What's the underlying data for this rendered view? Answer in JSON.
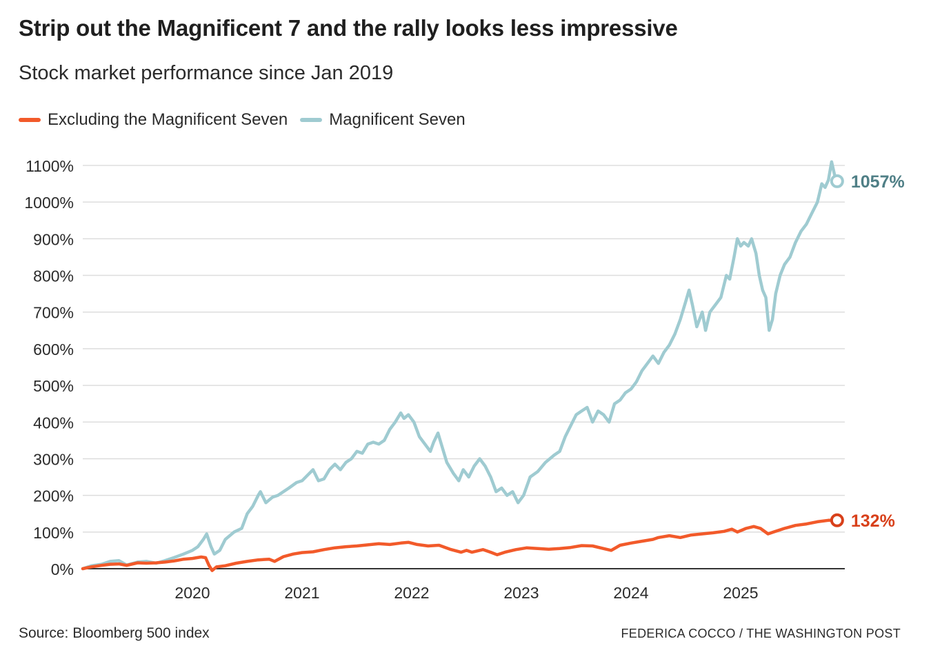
{
  "title": "Strip out the Magnificent 7 and the rally looks less impressive",
  "subtitle": "Stock market performance since Jan 2019",
  "source": "Source: Bloomberg 500 index",
  "credit": "FEDERICA COCCO / THE WASHINGTON POST",
  "colors": {
    "ex_mag7": "#f25a2a",
    "mag7": "#9fcbd1",
    "ex_mag7_label": "#d8401a",
    "mag7_label": "#4f7f86",
    "grid": "#dddddd",
    "axis": "#333333"
  },
  "chart_data": {
    "type": "line",
    "title": "Strip out the Magnificent 7 and the rally looks less impressive",
    "subtitle": "Stock market performance since Jan 2019",
    "xlabel": "",
    "ylabel": "",
    "xlim": [
      2019.0,
      2025.95
    ],
    "ylim": [
      0,
      1100
    ],
    "x_ticks": [
      2020,
      2021,
      2022,
      2023,
      2024,
      2025
    ],
    "x_tick_labels": [
      "2020",
      "2021",
      "2022",
      "2023",
      "2024",
      "2025"
    ],
    "y_ticks": [
      0,
      100,
      200,
      300,
      400,
      500,
      600,
      700,
      800,
      900,
      1000,
      1100
    ],
    "y_tick_labels": [
      "0%",
      "100%",
      "200%",
      "300%",
      "400%",
      "500%",
      "600%",
      "700%",
      "800%",
      "900%",
      "1000%",
      "1100%"
    ],
    "grid": true,
    "legend_position": "top-left",
    "series": [
      {
        "name": "Excluding the Magnificent Seven",
        "color": "#f25a2a",
        "end_label": "132%",
        "points": [
          [
            2019.0,
            0
          ],
          [
            2019.08,
            5
          ],
          [
            2019.17,
            9
          ],
          [
            2019.25,
            12
          ],
          [
            2019.33,
            13
          ],
          [
            2019.4,
            9
          ],
          [
            2019.5,
            16
          ],
          [
            2019.58,
            15
          ],
          [
            2019.67,
            16
          ],
          [
            2019.75,
            18
          ],
          [
            2019.83,
            21
          ],
          [
            2019.92,
            26
          ],
          [
            2020.0,
            28
          ],
          [
            2020.08,
            32
          ],
          [
            2020.12,
            30
          ],
          [
            2020.15,
            10
          ],
          [
            2020.18,
            -5
          ],
          [
            2020.22,
            5
          ],
          [
            2020.3,
            8
          ],
          [
            2020.4,
            15
          ],
          [
            2020.5,
            20
          ],
          [
            2020.6,
            24
          ],
          [
            2020.7,
            26
          ],
          [
            2020.75,
            20
          ],
          [
            2020.83,
            33
          ],
          [
            2020.92,
            40
          ],
          [
            2021.0,
            44
          ],
          [
            2021.1,
            46
          ],
          [
            2021.2,
            52
          ],
          [
            2021.3,
            57
          ],
          [
            2021.4,
            60
          ],
          [
            2021.5,
            62
          ],
          [
            2021.6,
            65
          ],
          [
            2021.7,
            68
          ],
          [
            2021.8,
            66
          ],
          [
            2021.9,
            70
          ],
          [
            2021.97,
            72
          ],
          [
            2022.05,
            66
          ],
          [
            2022.15,
            62
          ],
          [
            2022.25,
            64
          ],
          [
            2022.35,
            53
          ],
          [
            2022.45,
            45
          ],
          [
            2022.5,
            50
          ],
          [
            2022.55,
            45
          ],
          [
            2022.65,
            52
          ],
          [
            2022.72,
            45
          ],
          [
            2022.78,
            38
          ],
          [
            2022.85,
            45
          ],
          [
            2022.95,
            52
          ],
          [
            2023.05,
            57
          ],
          [
            2023.15,
            55
          ],
          [
            2023.25,
            53
          ],
          [
            2023.35,
            55
          ],
          [
            2023.45,
            58
          ],
          [
            2023.55,
            63
          ],
          [
            2023.65,
            62
          ],
          [
            2023.75,
            55
          ],
          [
            2023.82,
            50
          ],
          [
            2023.9,
            64
          ],
          [
            2024.0,
            70
          ],
          [
            2024.1,
            75
          ],
          [
            2024.2,
            80
          ],
          [
            2024.25,
            85
          ],
          [
            2024.35,
            90
          ],
          [
            2024.45,
            85
          ],
          [
            2024.55,
            92
          ],
          [
            2024.65,
            95
          ],
          [
            2024.75,
            98
          ],
          [
            2024.85,
            102
          ],
          [
            2024.92,
            108
          ],
          [
            2024.97,
            100
          ],
          [
            2025.05,
            110
          ],
          [
            2025.12,
            115
          ],
          [
            2025.18,
            110
          ],
          [
            2025.25,
            95
          ],
          [
            2025.3,
            100
          ],
          [
            2025.4,
            110
          ],
          [
            2025.5,
            118
          ],
          [
            2025.6,
            122
          ],
          [
            2025.7,
            128
          ],
          [
            2025.8,
            132
          ],
          [
            2025.88,
            132
          ]
        ]
      },
      {
        "name": "Magnificent Seven",
        "color": "#9fcbd1",
        "end_label": "1057%",
        "points": [
          [
            2019.0,
            0
          ],
          [
            2019.08,
            8
          ],
          [
            2019.17,
            12
          ],
          [
            2019.25,
            20
          ],
          [
            2019.33,
            22
          ],
          [
            2019.4,
            10
          ],
          [
            2019.5,
            18
          ],
          [
            2019.58,
            20
          ],
          [
            2019.67,
            15
          ],
          [
            2019.75,
            22
          ],
          [
            2019.83,
            30
          ],
          [
            2019.92,
            40
          ],
          [
            2020.0,
            50
          ],
          [
            2020.05,
            60
          ],
          [
            2020.1,
            80
          ],
          [
            2020.13,
            95
          ],
          [
            2020.17,
            60
          ],
          [
            2020.2,
            40
          ],
          [
            2020.25,
            50
          ],
          [
            2020.3,
            80
          ],
          [
            2020.38,
            100
          ],
          [
            2020.45,
            110
          ],
          [
            2020.5,
            150
          ],
          [
            2020.55,
            170
          ],
          [
            2020.6,
            200
          ],
          [
            2020.62,
            210
          ],
          [
            2020.67,
            180
          ],
          [
            2020.73,
            195
          ],
          [
            2020.78,
            200
          ],
          [
            2020.83,
            210
          ],
          [
            2020.88,
            220
          ],
          [
            2020.95,
            235
          ],
          [
            2021.0,
            240
          ],
          [
            2021.05,
            255
          ],
          [
            2021.1,
            270
          ],
          [
            2021.15,
            240
          ],
          [
            2021.2,
            245
          ],
          [
            2021.25,
            270
          ],
          [
            2021.3,
            285
          ],
          [
            2021.35,
            270
          ],
          [
            2021.4,
            290
          ],
          [
            2021.45,
            300
          ],
          [
            2021.5,
            320
          ],
          [
            2021.55,
            315
          ],
          [
            2021.6,
            340
          ],
          [
            2021.65,
            345
          ],
          [
            2021.7,
            340
          ],
          [
            2021.75,
            350
          ],
          [
            2021.8,
            380
          ],
          [
            2021.85,
            400
          ],
          [
            2021.9,
            425
          ],
          [
            2021.93,
            410
          ],
          [
            2021.97,
            420
          ],
          [
            2022.02,
            400
          ],
          [
            2022.07,
            360
          ],
          [
            2022.12,
            340
          ],
          [
            2022.17,
            320
          ],
          [
            2022.2,
            345
          ],
          [
            2022.24,
            370
          ],
          [
            2022.28,
            330
          ],
          [
            2022.32,
            290
          ],
          [
            2022.38,
            260
          ],
          [
            2022.43,
            240
          ],
          [
            2022.47,
            270
          ],
          [
            2022.52,
            250
          ],
          [
            2022.57,
            280
          ],
          [
            2022.62,
            300
          ],
          [
            2022.67,
            280
          ],
          [
            2022.72,
            250
          ],
          [
            2022.77,
            210
          ],
          [
            2022.82,
            220
          ],
          [
            2022.87,
            200
          ],
          [
            2022.92,
            210
          ],
          [
            2022.97,
            180
          ],
          [
            2023.02,
            200
          ],
          [
            2023.08,
            250
          ],
          [
            2023.15,
            265
          ],
          [
            2023.22,
            290
          ],
          [
            2023.3,
            310
          ],
          [
            2023.35,
            320
          ],
          [
            2023.4,
            360
          ],
          [
            2023.45,
            390
          ],
          [
            2023.5,
            420
          ],
          [
            2023.55,
            430
          ],
          [
            2023.6,
            440
          ],
          [
            2023.65,
            400
          ],
          [
            2023.7,
            430
          ],
          [
            2023.75,
            420
          ],
          [
            2023.8,
            400
          ],
          [
            2023.85,
            450
          ],
          [
            2023.9,
            460
          ],
          [
            2023.95,
            480
          ],
          [
            2024.0,
            490
          ],
          [
            2024.05,
            510
          ],
          [
            2024.1,
            540
          ],
          [
            2024.15,
            560
          ],
          [
            2024.2,
            580
          ],
          [
            2024.25,
            560
          ],
          [
            2024.3,
            590
          ],
          [
            2024.35,
            610
          ],
          [
            2024.4,
            640
          ],
          [
            2024.45,
            680
          ],
          [
            2024.5,
            730
          ],
          [
            2024.53,
            760
          ],
          [
            2024.56,
            720
          ],
          [
            2024.6,
            660
          ],
          [
            2024.65,
            700
          ],
          [
            2024.68,
            650
          ],
          [
            2024.72,
            700
          ],
          [
            2024.77,
            720
          ],
          [
            2024.82,
            740
          ],
          [
            2024.87,
            800
          ],
          [
            2024.9,
            790
          ],
          [
            2024.94,
            850
          ],
          [
            2024.97,
            900
          ],
          [
            2025.0,
            880
          ],
          [
            2025.03,
            890
          ],
          [
            2025.07,
            880
          ],
          [
            2025.1,
            900
          ],
          [
            2025.14,
            860
          ],
          [
            2025.17,
            800
          ],
          [
            2025.2,
            760
          ],
          [
            2025.23,
            740
          ],
          [
            2025.26,
            650
          ],
          [
            2025.29,
            680
          ],
          [
            2025.32,
            750
          ],
          [
            2025.36,
            800
          ],
          [
            2025.4,
            830
          ],
          [
            2025.45,
            850
          ],
          [
            2025.5,
            890
          ],
          [
            2025.55,
            920
          ],
          [
            2025.6,
            940
          ],
          [
            2025.65,
            970
          ],
          [
            2025.7,
            1000
          ],
          [
            2025.74,
            1050
          ],
          [
            2025.77,
            1040
          ],
          [
            2025.8,
            1060
          ],
          [
            2025.83,
            1110
          ],
          [
            2025.86,
            1070
          ],
          [
            2025.88,
            1057
          ]
        ]
      }
    ]
  }
}
